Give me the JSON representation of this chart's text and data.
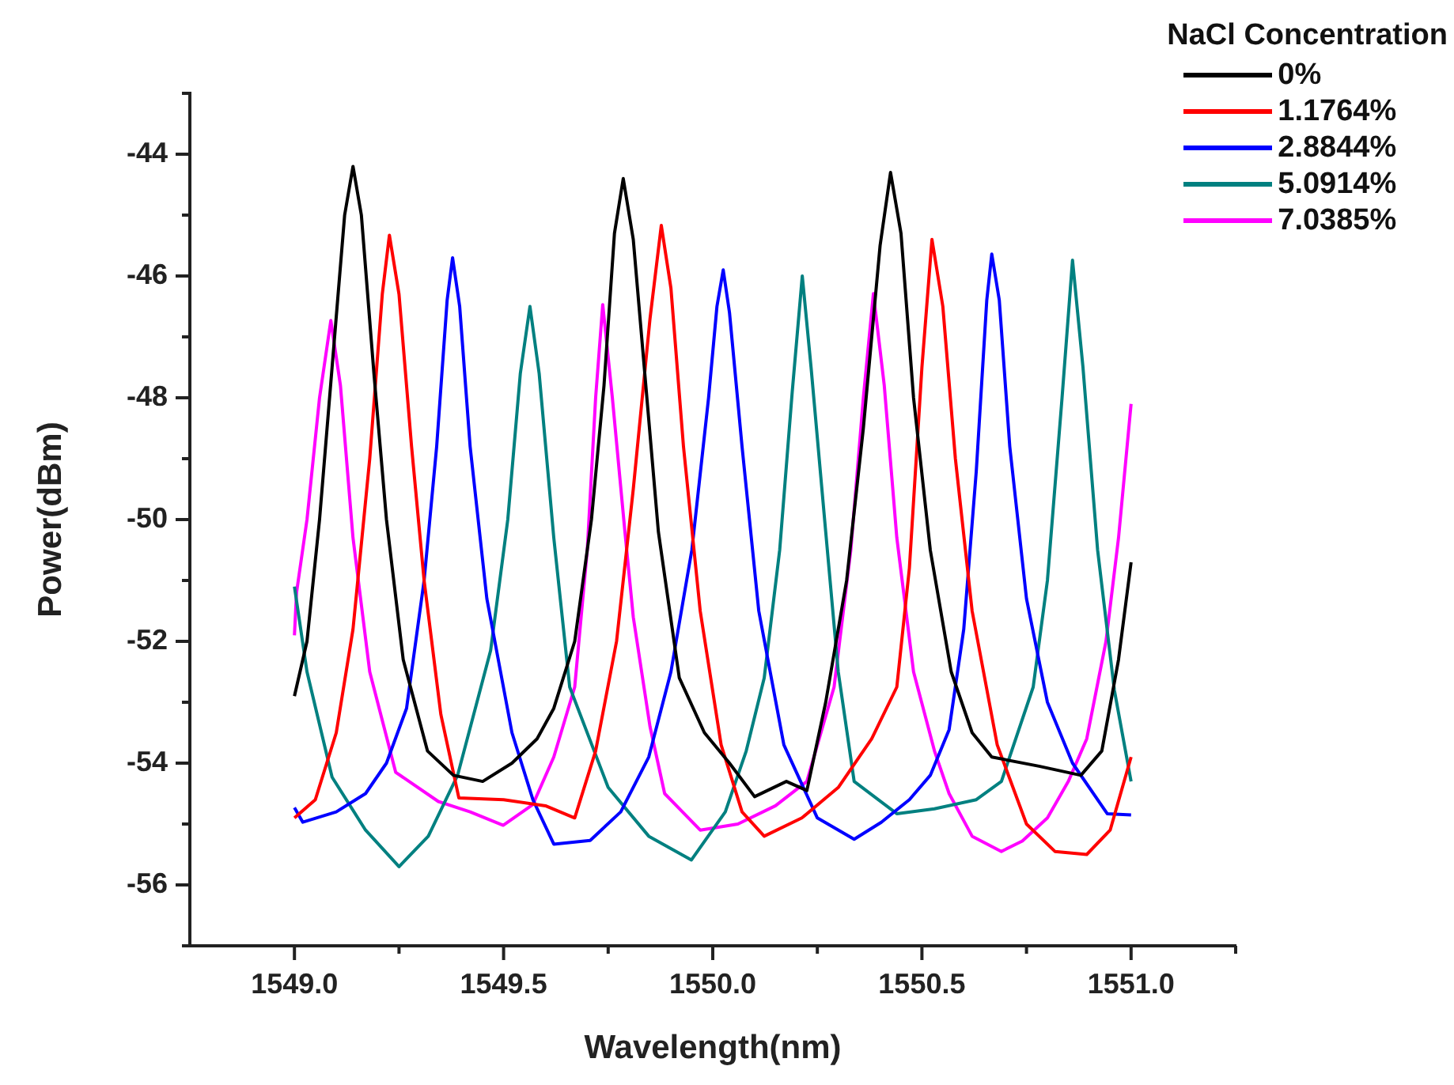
{
  "chart_data": {
    "type": "line",
    "xlabel": "Wavelength(nm)",
    "ylabel": "Power(dBm)",
    "legend_title": "NaCl Concentration",
    "legend": "top right",
    "grid": false,
    "marker": "none",
    "line_style": "solid",
    "xlim": [
      1548.75,
      1551.25
    ],
    "ylim": [
      -57,
      -43
    ],
    "xticks": [
      {
        "value": 1549,
        "label": "1549.0"
      },
      {
        "value": 1549.25,
        "label": null
      },
      1549.5,
      {
        "value": 1549.75,
        "label": null
      },
      {
        "value": 1550,
        "label": "1550.0"
      },
      {
        "value": 1550.25,
        "label": null
      },
      1550.5,
      {
        "value": 1550.75,
        "label": null
      },
      {
        "value": 1551,
        "label": "1551.0"
      },
      {
        "value": 1551.25,
        "label": null
      }
    ],
    "yticks": [
      {
        "value": -43,
        "label": null
      },
      -44,
      {
        "value": -45,
        "label": null
      },
      -46,
      {
        "value": -47,
        "label": null
      },
      -48,
      {
        "value": -49,
        "label": null
      },
      -50,
      {
        "value": -51,
        "label": null
      },
      -52,
      {
        "value": -53,
        "label": null
      },
      -54,
      {
        "value": -55,
        "label": null
      },
      -56,
      {
        "value": -57,
        "label": null
      }
    ],
    "series": [
      {
        "name": "0%",
        "color": "#000000",
        "x": [
          1549.0,
          1549.03,
          1549.06,
          1549.09,
          1549.12,
          1549.14,
          1549.16,
          1549.19,
          1549.22,
          1549.26,
          1549.318,
          1549.38,
          1549.45,
          1549.52,
          1549.58,
          1549.62,
          1549.67,
          1549.71,
          1549.74,
          1549.765,
          1549.786,
          1549.81,
          1549.84,
          1549.87,
          1549.92,
          1549.98,
          1550.04,
          1550.1,
          1550.176,
          1550.225,
          1550.27,
          1550.32,
          1550.36,
          1550.4,
          1550.425,
          1550.45,
          1550.48,
          1550.52,
          1550.57,
          1550.62,
          1550.667,
          1550.78,
          1550.88,
          1550.93,
          1550.97,
          1551.0
        ],
        "values": [
          -52.9,
          -52.0,
          -50.0,
          -47.5,
          -45.0,
          -44.2,
          -45.0,
          -47.6,
          -50.0,
          -52.3,
          -53.8,
          -54.2,
          -54.3,
          -54.0,
          -53.6,
          -53.1,
          -52.0,
          -50.0,
          -47.8,
          -45.3,
          -44.4,
          -45.4,
          -47.8,
          -50.2,
          -52.6,
          -53.5,
          -54.0,
          -54.55,
          -54.3,
          -54.45,
          -53.0,
          -51.0,
          -48.5,
          -45.5,
          -44.3,
          -45.3,
          -48.0,
          -50.5,
          -52.5,
          -53.5,
          -53.9,
          -54.05,
          -54.2,
          -53.8,
          -52.3,
          -50.7
        ]
      },
      {
        "name": "1.1764%",
        "color": "#ff0000",
        "x": [
          1549.0,
          1549.05,
          1549.1,
          1549.14,
          1549.18,
          1549.21,
          1549.227,
          1549.25,
          1549.28,
          1549.31,
          1549.35,
          1549.393,
          1549.5,
          1549.6,
          1549.67,
          1549.72,
          1549.77,
          1549.81,
          1549.85,
          1549.877,
          1549.9,
          1549.93,
          1549.97,
          1550.02,
          1550.07,
          1550.123,
          1550.213,
          1550.3,
          1550.38,
          1550.44,
          1550.47,
          1550.5,
          1550.524,
          1550.55,
          1550.58,
          1550.62,
          1550.68,
          1550.75,
          1550.818,
          1550.894,
          1550.95,
          1551.0
        ],
        "values": [
          -54.9,
          -54.6,
          -53.5,
          -51.8,
          -49.0,
          -46.3,
          -45.33,
          -46.3,
          -48.8,
          -51.0,
          -53.2,
          -54.57,
          -54.6,
          -54.7,
          -54.9,
          -53.8,
          -52.0,
          -49.5,
          -46.7,
          -45.17,
          -46.2,
          -48.8,
          -51.5,
          -53.7,
          -54.8,
          -55.2,
          -54.9,
          -54.4,
          -53.6,
          -52.75,
          -50.8,
          -47.5,
          -45.4,
          -46.5,
          -49.0,
          -51.5,
          -53.7,
          -55.0,
          -55.45,
          -55.5,
          -55.1,
          -53.9
        ]
      },
      {
        "name": "2.8844%",
        "color": "#0000ff",
        "x": [
          1549.0,
          1549.02,
          1549.1,
          1549.17,
          1549.22,
          1549.268,
          1549.31,
          1549.34,
          1549.365,
          1549.378,
          1549.395,
          1549.42,
          1549.46,
          1549.52,
          1549.57,
          1549.62,
          1549.707,
          1549.78,
          1549.847,
          1549.9,
          1549.95,
          1549.99,
          1550.01,
          1550.025,
          1550.04,
          1550.07,
          1550.11,
          1550.17,
          1550.25,
          1550.338,
          1550.403,
          1550.47,
          1550.52,
          1550.565,
          1550.6,
          1550.63,
          1550.655,
          1550.667,
          1550.685,
          1550.71,
          1550.75,
          1550.8,
          1550.86,
          1550.943,
          1551.0
        ],
        "values": [
          -54.73,
          -54.97,
          -54.8,
          -54.5,
          -54.0,
          -53.1,
          -51.0,
          -48.8,
          -46.4,
          -45.7,
          -46.5,
          -48.8,
          -51.3,
          -53.5,
          -54.6,
          -55.33,
          -55.27,
          -54.8,
          -53.9,
          -52.5,
          -50.5,
          -48.0,
          -46.5,
          -45.9,
          -46.6,
          -48.8,
          -51.5,
          -53.7,
          -54.9,
          -55.25,
          -54.97,
          -54.6,
          -54.2,
          -53.45,
          -51.8,
          -49.2,
          -46.4,
          -45.64,
          -46.4,
          -48.8,
          -51.3,
          -53.0,
          -54.0,
          -54.83,
          -54.85
        ]
      },
      {
        "name": "5.0914%",
        "color": "#008080",
        "x": [
          1549.0,
          1549.03,
          1549.09,
          1549.17,
          1549.25,
          1549.32,
          1549.39,
          1549.469,
          1549.51,
          1549.54,
          1549.563,
          1549.585,
          1549.62,
          1549.658,
          1549.75,
          1549.847,
          1549.949,
          1550.03,
          1550.08,
          1550.123,
          1550.16,
          1550.19,
          1550.214,
          1550.235,
          1550.27,
          1550.3,
          1550.338,
          1550.44,
          1550.53,
          1550.63,
          1550.69,
          1550.766,
          1550.8,
          1550.835,
          1550.86,
          1550.885,
          1550.92,
          1550.96,
          1551.0
        ],
        "values": [
          -51.1,
          -52.5,
          -54.23,
          -55.1,
          -55.7,
          -55.2,
          -54.2,
          -52.15,
          -50.0,
          -47.6,
          -46.5,
          -47.6,
          -50.3,
          -52.75,
          -54.4,
          -55.2,
          -55.59,
          -54.8,
          -53.8,
          -52.6,
          -50.5,
          -47.9,
          -46.0,
          -47.5,
          -50.2,
          -52.5,
          -54.3,
          -54.83,
          -54.75,
          -54.6,
          -54.3,
          -52.75,
          -51.0,
          -48.0,
          -45.74,
          -47.5,
          -50.5,
          -52.8,
          -54.3
        ]
      },
      {
        "name": "7.0385%",
        "color": "#ff00ff",
        "x": [
          1549.0,
          1549.005,
          1549.03,
          1549.06,
          1549.087,
          1549.11,
          1549.14,
          1549.18,
          1549.242,
          1549.344,
          1549.42,
          1549.499,
          1549.57,
          1549.62,
          1549.67,
          1549.7,
          1549.72,
          1549.737,
          1549.76,
          1549.79,
          1549.81,
          1549.85,
          1549.885,
          1549.97,
          1550.06,
          1550.15,
          1550.225,
          1550.29,
          1550.33,
          1550.36,
          1550.384,
          1550.41,
          1550.44,
          1550.48,
          1550.53,
          1550.565,
          1550.62,
          1550.69,
          1550.74,
          1550.8,
          1550.85,
          1550.894,
          1550.94,
          1550.97,
          1551.0
        ],
        "values": [
          -51.9,
          -51.2,
          -50.0,
          -48.0,
          -46.73,
          -47.8,
          -50.3,
          -52.5,
          -54.15,
          -54.63,
          -54.8,
          -55.02,
          -54.68,
          -53.9,
          -52.75,
          -50.5,
          -48.0,
          -46.47,
          -48.0,
          -50.2,
          -51.6,
          -53.4,
          -54.5,
          -55.1,
          -55.0,
          -54.7,
          -54.3,
          -52.75,
          -50.5,
          -48.0,
          -46.29,
          -47.8,
          -50.3,
          -52.5,
          -53.8,
          -54.5,
          -55.2,
          -55.45,
          -55.28,
          -54.9,
          -54.3,
          -53.6,
          -52.0,
          -50.3,
          -48.1
        ]
      }
    ]
  }
}
